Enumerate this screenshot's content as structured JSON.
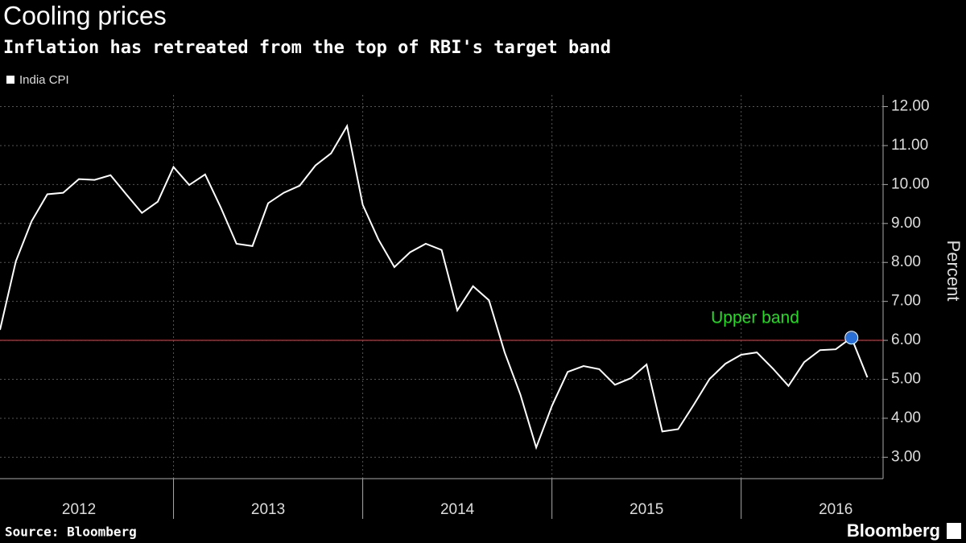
{
  "chart_data": {
    "type": "line",
    "title": "Cooling prices",
    "subtitle": "Inflation has retreated from the top of RBI's target band",
    "y_label": "Percent",
    "source": "Source: Bloomberg",
    "brand": "Bloomberg",
    "x": [
      2012.083,
      2012.167,
      2012.25,
      2012.333,
      2012.417,
      2012.5,
      2012.583,
      2012.667,
      2012.75,
      2012.833,
      2012.917,
      2013,
      2013.083,
      2013.167,
      2013.25,
      2013.333,
      2013.417,
      2013.5,
      2013.583,
      2013.667,
      2013.75,
      2013.833,
      2013.917,
      2014,
      2014.083,
      2014.167,
      2014.25,
      2014.333,
      2014.417,
      2014.5,
      2014.583,
      2014.667,
      2014.75,
      2014.833,
      2014.917,
      2015,
      2015.083,
      2015.167,
      2015.25,
      2015.333,
      2015.417,
      2015.5,
      2015.583,
      2015.667,
      2015.75,
      2015.833,
      2015.917,
      2016,
      2016.083,
      2016.167,
      2016.25,
      2016.333,
      2016.417,
      2016.5,
      2016.583,
      2016.667
    ],
    "series": [
      {
        "name": "India CPI",
        "color": "#ffffff",
        "values": [
          6.27,
          8.03,
          9.06,
          9.75,
          9.79,
          10.14,
          10.12,
          10.24,
          9.75,
          9.27,
          9.56,
          10.45,
          9.99,
          10.26,
          9.41,
          8.48,
          8.42,
          9.52,
          9.79,
          9.97,
          10.49,
          10.8,
          11.5,
          9.48,
          8.59,
          7.88,
          8.26,
          8.48,
          8.32,
          6.77,
          7.39,
          7.03,
          5.69,
          4.61,
          3.25,
          4.32,
          5.19,
          5.34,
          5.26,
          4.86,
          5.03,
          5.38,
          3.66,
          3.72,
          4.35,
          5.01,
          5.4,
          5.63,
          5.69,
          5.28,
          4.83,
          5.44,
          5.75,
          5.77,
          6.07,
          5.05
        ]
      }
    ],
    "reference_line": {
      "value": 6,
      "label": "Upper band",
      "color": "#e0303a"
    },
    "highlight": {
      "x": 2016.583,
      "value": 6.07,
      "color": "#2a6fd6"
    },
    "xlim": [
      2012.083,
      2016.75
    ],
    "ylim": [
      2.45,
      12.3
    ],
    "xticks": [
      {
        "value": 2012,
        "label": "2012"
      },
      {
        "value": 2013,
        "label": "2013"
      },
      {
        "value": 2014,
        "label": "2014"
      },
      {
        "value": 2015,
        "label": "2015"
      },
      {
        "value": 2016,
        "label": "2016"
      }
    ],
    "yticks": [
      {
        "value": 3,
        "label": "3.00"
      },
      {
        "value": 4,
        "label": "4.00"
      },
      {
        "value": 5,
        "label": "5.00"
      },
      {
        "value": 6,
        "label": "6.00"
      },
      {
        "value": 7,
        "label": "7.00"
      },
      {
        "value": 8,
        "label": "8.00"
      },
      {
        "value": 9,
        "label": "9.00"
      },
      {
        "value": 10,
        "label": "10.00"
      },
      {
        "value": 11,
        "label": "11.00"
      },
      {
        "value": 12,
        "label": "12.00"
      }
    ],
    "grid": true
  }
}
